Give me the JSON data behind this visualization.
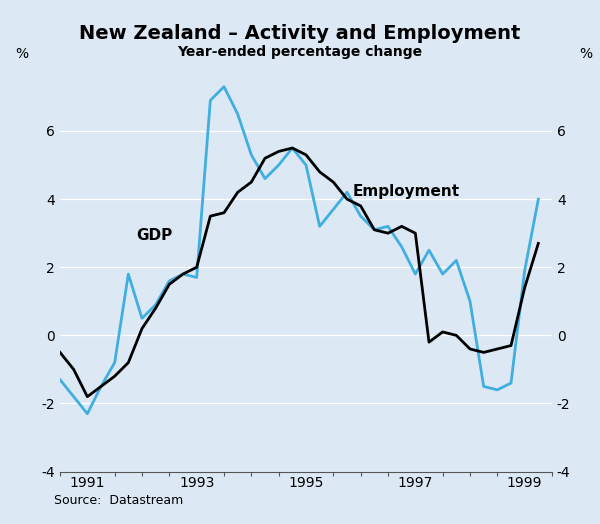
{
  "title": "New Zealand – Activity and Employment",
  "subtitle": "Year-ended percentage change",
  "source": "Source:  Datastream",
  "ylabel_left": "%",
  "ylabel_right": "%",
  "ylim": [
    -4,
    8
  ],
  "yticks": [
    -4,
    -2,
    0,
    2,
    4,
    6
  ],
  "xlim_start": 1990.5,
  "xlim_end": 1999.5,
  "xticks": [
    1991,
    1993,
    1995,
    1997,
    1999
  ],
  "background_color": "#dce9f5",
  "plot_bg_color": "#dce9f5",
  "gdp_color": "#000000",
  "employment_color": "#41aee0",
  "gdp_label": "GDP",
  "employment_label": "Employment",
  "gdp_x": [
    1990.5,
    1990.75,
    1991.0,
    1991.25,
    1991.5,
    1991.75,
    1992.0,
    1992.25,
    1992.5,
    1992.75,
    1993.0,
    1993.25,
    1993.5,
    1993.75,
    1994.0,
    1994.25,
    1994.5,
    1994.75,
    1995.0,
    1995.25,
    1995.5,
    1995.75,
    1996.0,
    1996.25,
    1996.5,
    1996.75,
    1997.0,
    1997.25,
    1997.5,
    1997.75,
    1998.0,
    1998.25,
    1998.5,
    1998.75,
    1999.0,
    1999.25
  ],
  "gdp_y": [
    -0.5,
    -1.0,
    -1.8,
    -1.5,
    -1.2,
    -0.8,
    0.2,
    0.8,
    1.5,
    1.8,
    2.0,
    3.5,
    3.6,
    4.2,
    4.5,
    5.2,
    5.4,
    5.5,
    5.3,
    4.8,
    4.5,
    4.0,
    3.8,
    3.1,
    3.0,
    3.2,
    3.0,
    -0.2,
    0.1,
    0.0,
    -0.4,
    -0.5,
    -0.4,
    -0.3,
    1.4,
    2.7
  ],
  "emp_x": [
    1990.5,
    1990.75,
    1991.0,
    1991.25,
    1991.5,
    1991.75,
    1992.0,
    1992.25,
    1992.5,
    1992.75,
    1993.0,
    1993.25,
    1993.5,
    1993.75,
    1994.0,
    1994.25,
    1994.5,
    1994.75,
    1995.0,
    1995.25,
    1995.5,
    1995.75,
    1996.0,
    1996.25,
    1996.5,
    1996.75,
    1997.0,
    1997.25,
    1997.5,
    1997.75,
    1998.0,
    1998.25,
    1998.5,
    1998.75,
    1999.0,
    1999.25
  ],
  "emp_y": [
    -1.3,
    -1.8,
    -2.3,
    -1.5,
    -0.8,
    1.8,
    0.5,
    0.9,
    1.6,
    1.8,
    1.7,
    6.9,
    7.3,
    6.5,
    5.3,
    4.6,
    5.0,
    5.5,
    5.0,
    3.2,
    3.7,
    4.2,
    3.5,
    3.1,
    3.2,
    2.6,
    1.8,
    2.5,
    1.8,
    2.2,
    1.0,
    -1.5,
    -1.6,
    -1.4,
    1.9,
    4.0
  ]
}
